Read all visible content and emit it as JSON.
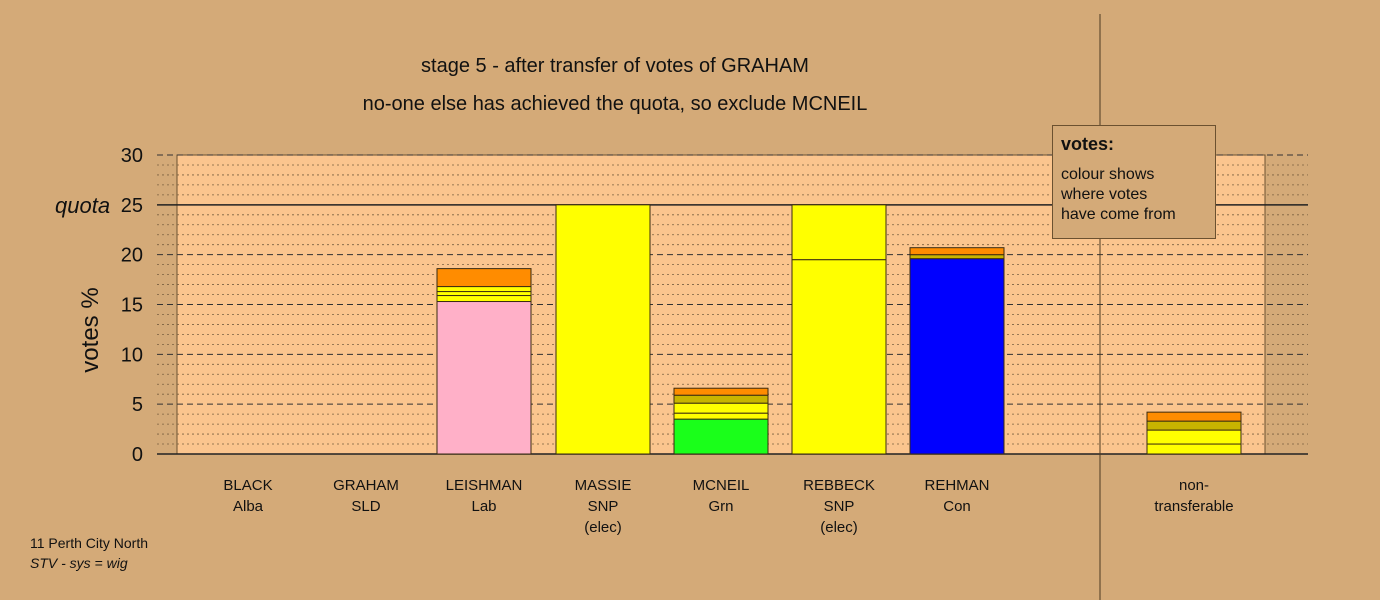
{
  "chart_data": {
    "type": "bar",
    "stacked": true,
    "title": "stage 5 - after transfer of votes of GRAHAM",
    "subtitle": "no-one else has achieved the quota, so exclude MCNEIL",
    "ylabel": "votes %",
    "ylim": [
      0,
      30
    ],
    "yticks": [
      0,
      5,
      10,
      15,
      20,
      25,
      30
    ],
    "quota": {
      "value": 25,
      "label": "quota"
    },
    "grid": true,
    "categories": [
      {
        "name": "BLACK",
        "party": "Alba",
        "note": "",
        "segments": []
      },
      {
        "name": "GRAHAM",
        "party": "SLD",
        "note": "",
        "segments": []
      },
      {
        "name": "LEISHMAN",
        "party": "Lab",
        "note": "",
        "segments": [
          {
            "value": 15.3,
            "color": "#ffb0c8"
          },
          {
            "value": 0.6,
            "color": "#ffff00"
          },
          {
            "value": 0.4,
            "color": "#ffff00"
          },
          {
            "value": 0.5,
            "color": "#ffff00"
          },
          {
            "value": 1.8,
            "color": "#ff8c00"
          }
        ]
      },
      {
        "name": "MASSIE",
        "party": "SNP",
        "note": "(elec)",
        "segments": [
          {
            "value": 25.0,
            "color": "#ffff00"
          }
        ]
      },
      {
        "name": "MCNEIL",
        "party": "Grn",
        "note": "",
        "segments": [
          {
            "value": 3.5,
            "color": "#1aff1a"
          },
          {
            "value": 0.6,
            "color": "#ffff00"
          },
          {
            "value": 1.0,
            "color": "#ffff00"
          },
          {
            "value": 0.8,
            "color": "#c8b400"
          },
          {
            "value": 0.7,
            "color": "#ff8c00"
          }
        ]
      },
      {
        "name": "REBBECK",
        "party": "SNP",
        "note": "(elec)",
        "segments": [
          {
            "value": 19.5,
            "color": "#ffff00"
          },
          {
            "value": 5.5,
            "color": "#ffff00"
          }
        ]
      },
      {
        "name": "REHMAN",
        "party": "Con",
        "note": "",
        "segments": [
          {
            "value": 19.6,
            "color": "#0000ff"
          },
          {
            "value": 0.4,
            "color": "#c8b400"
          },
          {
            "value": 0.7,
            "color": "#ff8c00"
          }
        ]
      },
      {
        "name": "non-",
        "party": "transferable",
        "note": "",
        "segments": [
          {
            "value": 1.0,
            "color": "#ffff00"
          },
          {
            "value": 1.4,
            "color": "#ffff00"
          },
          {
            "value": 0.9,
            "color": "#c8b400"
          },
          {
            "value": 0.9,
            "color": "#ff8c00"
          }
        ]
      }
    ],
    "legend": {
      "title": "votes:",
      "lines": [
        "colour shows",
        "where votes",
        "have come from"
      ],
      "position": "top-right"
    }
  },
  "footer": {
    "line1": "11 Perth City North",
    "line2": "STV - sys = wig"
  }
}
